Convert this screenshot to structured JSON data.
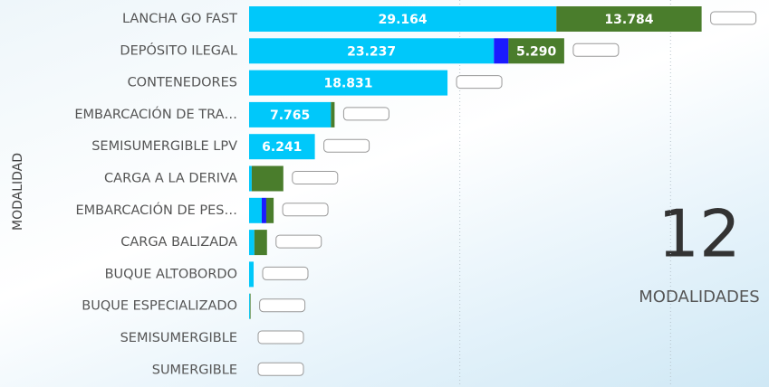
{
  "chart_data": {
    "type": "stacked-barh",
    "y_axis_label": "MODALIDAD",
    "categories": [
      "LANCHA GO FAST",
      "DEPÓSITO ILEGAL",
      "CONTENEDORES",
      "EMBARCACIÓN DE TRA…",
      "SEMISUMERGIBLE LPV",
      "CARGA A LA DERIVA",
      "EMBARCACIÓN DE PES…",
      "CARGA BALIZADA",
      "BUQUE ALTOBORDO",
      "BUQUE ESPECIALIZADO",
      "SEMISUMERGIBLE",
      "SUMERGIBLE"
    ],
    "series": [
      {
        "color": "#00c8fa",
        "values": [
          29164,
          23237,
          18831,
          7765,
          6241,
          250,
          1200,
          500,
          430,
          80,
          0,
          0
        ],
        "value_labels": [
          "29.164",
          "23.237",
          "18.831",
          "7.765",
          "6.241",
          null,
          null,
          null,
          null,
          null,
          null,
          null
        ]
      },
      {
        "color": "#1a1aff",
        "values": [
          0,
          1380,
          0,
          0,
          0,
          0,
          430,
          0,
          0,
          0,
          0,
          0
        ],
        "value_labels": [
          null,
          null,
          null,
          null,
          null,
          null,
          null,
          null,
          null,
          null,
          null,
          null
        ]
      },
      {
        "color": "#4a7d2c",
        "values": [
          13784,
          5290,
          0,
          350,
          0,
          3000,
          700,
          1200,
          0,
          60,
          0,
          0
        ],
        "value_labels": [
          "13.784",
          "5.290",
          null,
          null,
          null,
          null,
          null,
          null,
          null,
          null,
          null,
          null
        ]
      }
    ],
    "xlim": [
      0,
      49000
    ],
    "xticks": [
      20000,
      40000
    ],
    "grid": true,
    "tick_labels": false
  },
  "kpi": {
    "value": "12",
    "label": "MODALIDADES"
  }
}
